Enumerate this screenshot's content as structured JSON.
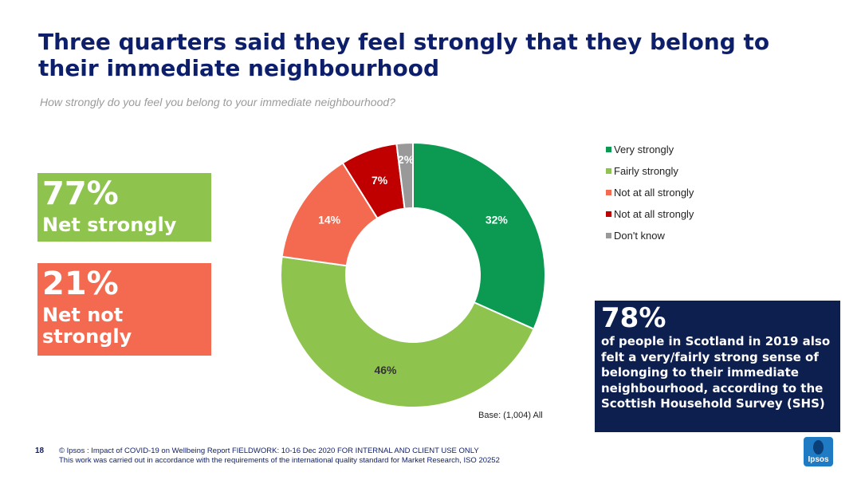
{
  "title": "Three quarters said they feel strongly that they belong to their immediate neighbourhood",
  "question": "How strongly do you feel you belong to your immediate neighbourhood?",
  "net_strongly": {
    "value": "77%",
    "label": "Net strongly",
    "color": "#8ec34e"
  },
  "net_not_strongly": {
    "value": "21%",
    "label": "Net not strongly",
    "color": "#f36a50"
  },
  "chart_data": {
    "type": "pie",
    "variant": "donut",
    "start": "top, clockwise",
    "legend_position": "right",
    "slices": [
      {
        "name": "Very strongly",
        "value": 32,
        "label": "32%",
        "color": "#0c9a52"
      },
      {
        "name": "Fairly strongly",
        "value": 46,
        "label": "46%",
        "color": "#8ec34e"
      },
      {
        "name": "Not at all strongly",
        "value": 14,
        "label": "14%",
        "color": "#f36a50"
      },
      {
        "name": "Not at all strongly",
        "value": 7,
        "label": "7%",
        "color": "#c00000"
      },
      {
        "name": "Don't know",
        "value": 2,
        "label": "2%",
        "color": "#999999"
      }
    ]
  },
  "base": "Base: (1,004) All",
  "shs": {
    "value": "78%",
    "text": "of people in Scotland in 2019 also felt a very/fairly strong sense of belonging to their immediate neighbourhood, according to the Scottish Household Survey (SHS)"
  },
  "page_number": "18",
  "footer": {
    "line1": "© Ipsos : Impact of COVID-19 on Wellbeing Report FIELDWORK: 10-16 Dec 2020 FOR INTERNAL AND CLIENT USE ONLY",
    "line2": "This work was carried out in accordance with the requirements of the international quality standard for Market Research, ISO 20252"
  },
  "logo": {
    "text": "Ipsos",
    "icon": "ipsos-logo-icon",
    "color": "#1f7bc4"
  }
}
